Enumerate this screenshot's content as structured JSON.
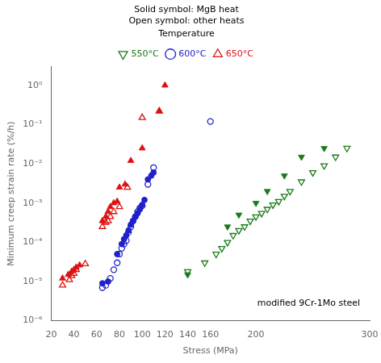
{
  "chart_data": {
    "type": "scatter",
    "xlabel": "Stress (MPa)",
    "ylabel": "Minimum creep strain rate (%/h)",
    "subtitle": [
      "Solid symbol: MgB heat",
      "Open symbol: other heats"
    ],
    "annotations": [
      "modified 9Cr-1Mo steel"
    ],
    "legend_title": "Temperature",
    "legend": "top",
    "log": "y",
    "grid": false,
    "xlim": [
      20,
      300
    ],
    "xticks": [
      20,
      40,
      60,
      80,
      100,
      120,
      140,
      160,
      200,
      300
    ],
    "ylim": [
      1e-06,
      3
    ],
    "yticks": [
      {
        "value": 1e-06,
        "label": "10⁻⁶"
      },
      {
        "value": 1e-05,
        "label": "10⁻⁵"
      },
      {
        "value": 0.0001,
        "label": "10⁻⁴"
      },
      {
        "value": 0.001,
        "label": "10⁻³"
      },
      {
        "value": 0.01,
        "label": "10⁻²"
      },
      {
        "value": 0.1,
        "label": "10⁻¹"
      },
      {
        "value": 1,
        "label": "10⁰"
      }
    ],
    "series": [
      {
        "color": "#dd1111",
        "marker": "triangle-up",
        "x": [
          30,
          35,
          38,
          40,
          42,
          45,
          65,
          68,
          70,
          72,
          75,
          78,
          80,
          85,
          90,
          100,
          115,
          120
        ],
        "values": [
          1.2e-05,
          1.5e-05,
          1.8e-05,
          2e-05,
          2.3e-05,
          2.6e-05,
          0.00035,
          0.00045,
          0.0006,
          0.0008,
          0.001,
          0.0011,
          0.0025,
          0.003,
          0.012,
          0.025,
          0.22,
          1.0
        ]
      },
      {
        "name": "650°C",
        "color": "#dd1111",
        "marker": "triangle-up-open",
        "x": [
          30,
          36,
          38,
          40,
          42,
          50,
          65,
          68,
          70,
          72,
          75,
          80,
          87,
          100,
          115
        ],
        "values": [
          8e-06,
          1.1e-05,
          1.4e-05,
          1.6e-05,
          2e-05,
          2.8e-05,
          0.00025,
          0.00032,
          0.00035,
          0.00045,
          0.0006,
          0.0008,
          0.0025,
          0.15,
          0.22
        ]
      },
      {
        "color": "#2020cc",
        "marker": "circle",
        "x": [
          65,
          70,
          78,
          82,
          84,
          86,
          88,
          90,
          92,
          94,
          96,
          98,
          100,
          102,
          105,
          108,
          110
        ],
        "values": [
          9e-06,
          1e-05,
          5e-05,
          9e-05,
          0.00012,
          0.00015,
          0.0002,
          0.00028,
          0.00035,
          0.00045,
          0.00055,
          0.0007,
          0.0009,
          0.0012,
          0.004,
          0.005,
          0.006
        ]
      },
      {
        "name": "600°C",
        "color": "#2020cc",
        "marker": "circle-open",
        "x": [
          65,
          68,
          72,
          75,
          78,
          80,
          82,
          84,
          86,
          88,
          90,
          92,
          94,
          96,
          98,
          100,
          105,
          110,
          160
        ],
        "values": [
          7e-06,
          8e-06,
          1.2e-05,
          2e-05,
          3e-05,
          5e-05,
          7e-05,
          9e-05,
          0.00011,
          0.00018,
          0.00025,
          0.00035,
          0.00045,
          0.0006,
          0.00075,
          0.00085,
          0.003,
          0.008,
          0.12
        ]
      },
      {
        "color": "#1a7a1a",
        "marker": "triangle-down",
        "x": [
          140,
          175,
          185,
          200,
          210,
          225,
          240,
          260
        ],
        "values": [
          1.5e-05,
          0.00025,
          0.0005,
          0.001,
          0.002,
          0.005,
          0.015,
          0.025
        ]
      },
      {
        "name": "550°C",
        "color": "#1a7a1a",
        "marker": "triangle-down-open",
        "x": [
          140,
          155,
          165,
          170,
          175,
          180,
          185,
          190,
          195,
          200,
          205,
          210,
          215,
          220,
          225,
          230,
          240,
          250,
          260,
          270,
          280
        ],
        "values": [
          1.8e-05,
          3e-05,
          5e-05,
          7e-05,
          0.0001,
          0.00015,
          0.0002,
          0.00025,
          0.00035,
          0.00045,
          0.00055,
          0.0007,
          0.0009,
          0.0011,
          0.0015,
          0.002,
          0.0035,
          0.006,
          0.009,
          0.015,
          0.025
        ]
      }
    ]
  }
}
